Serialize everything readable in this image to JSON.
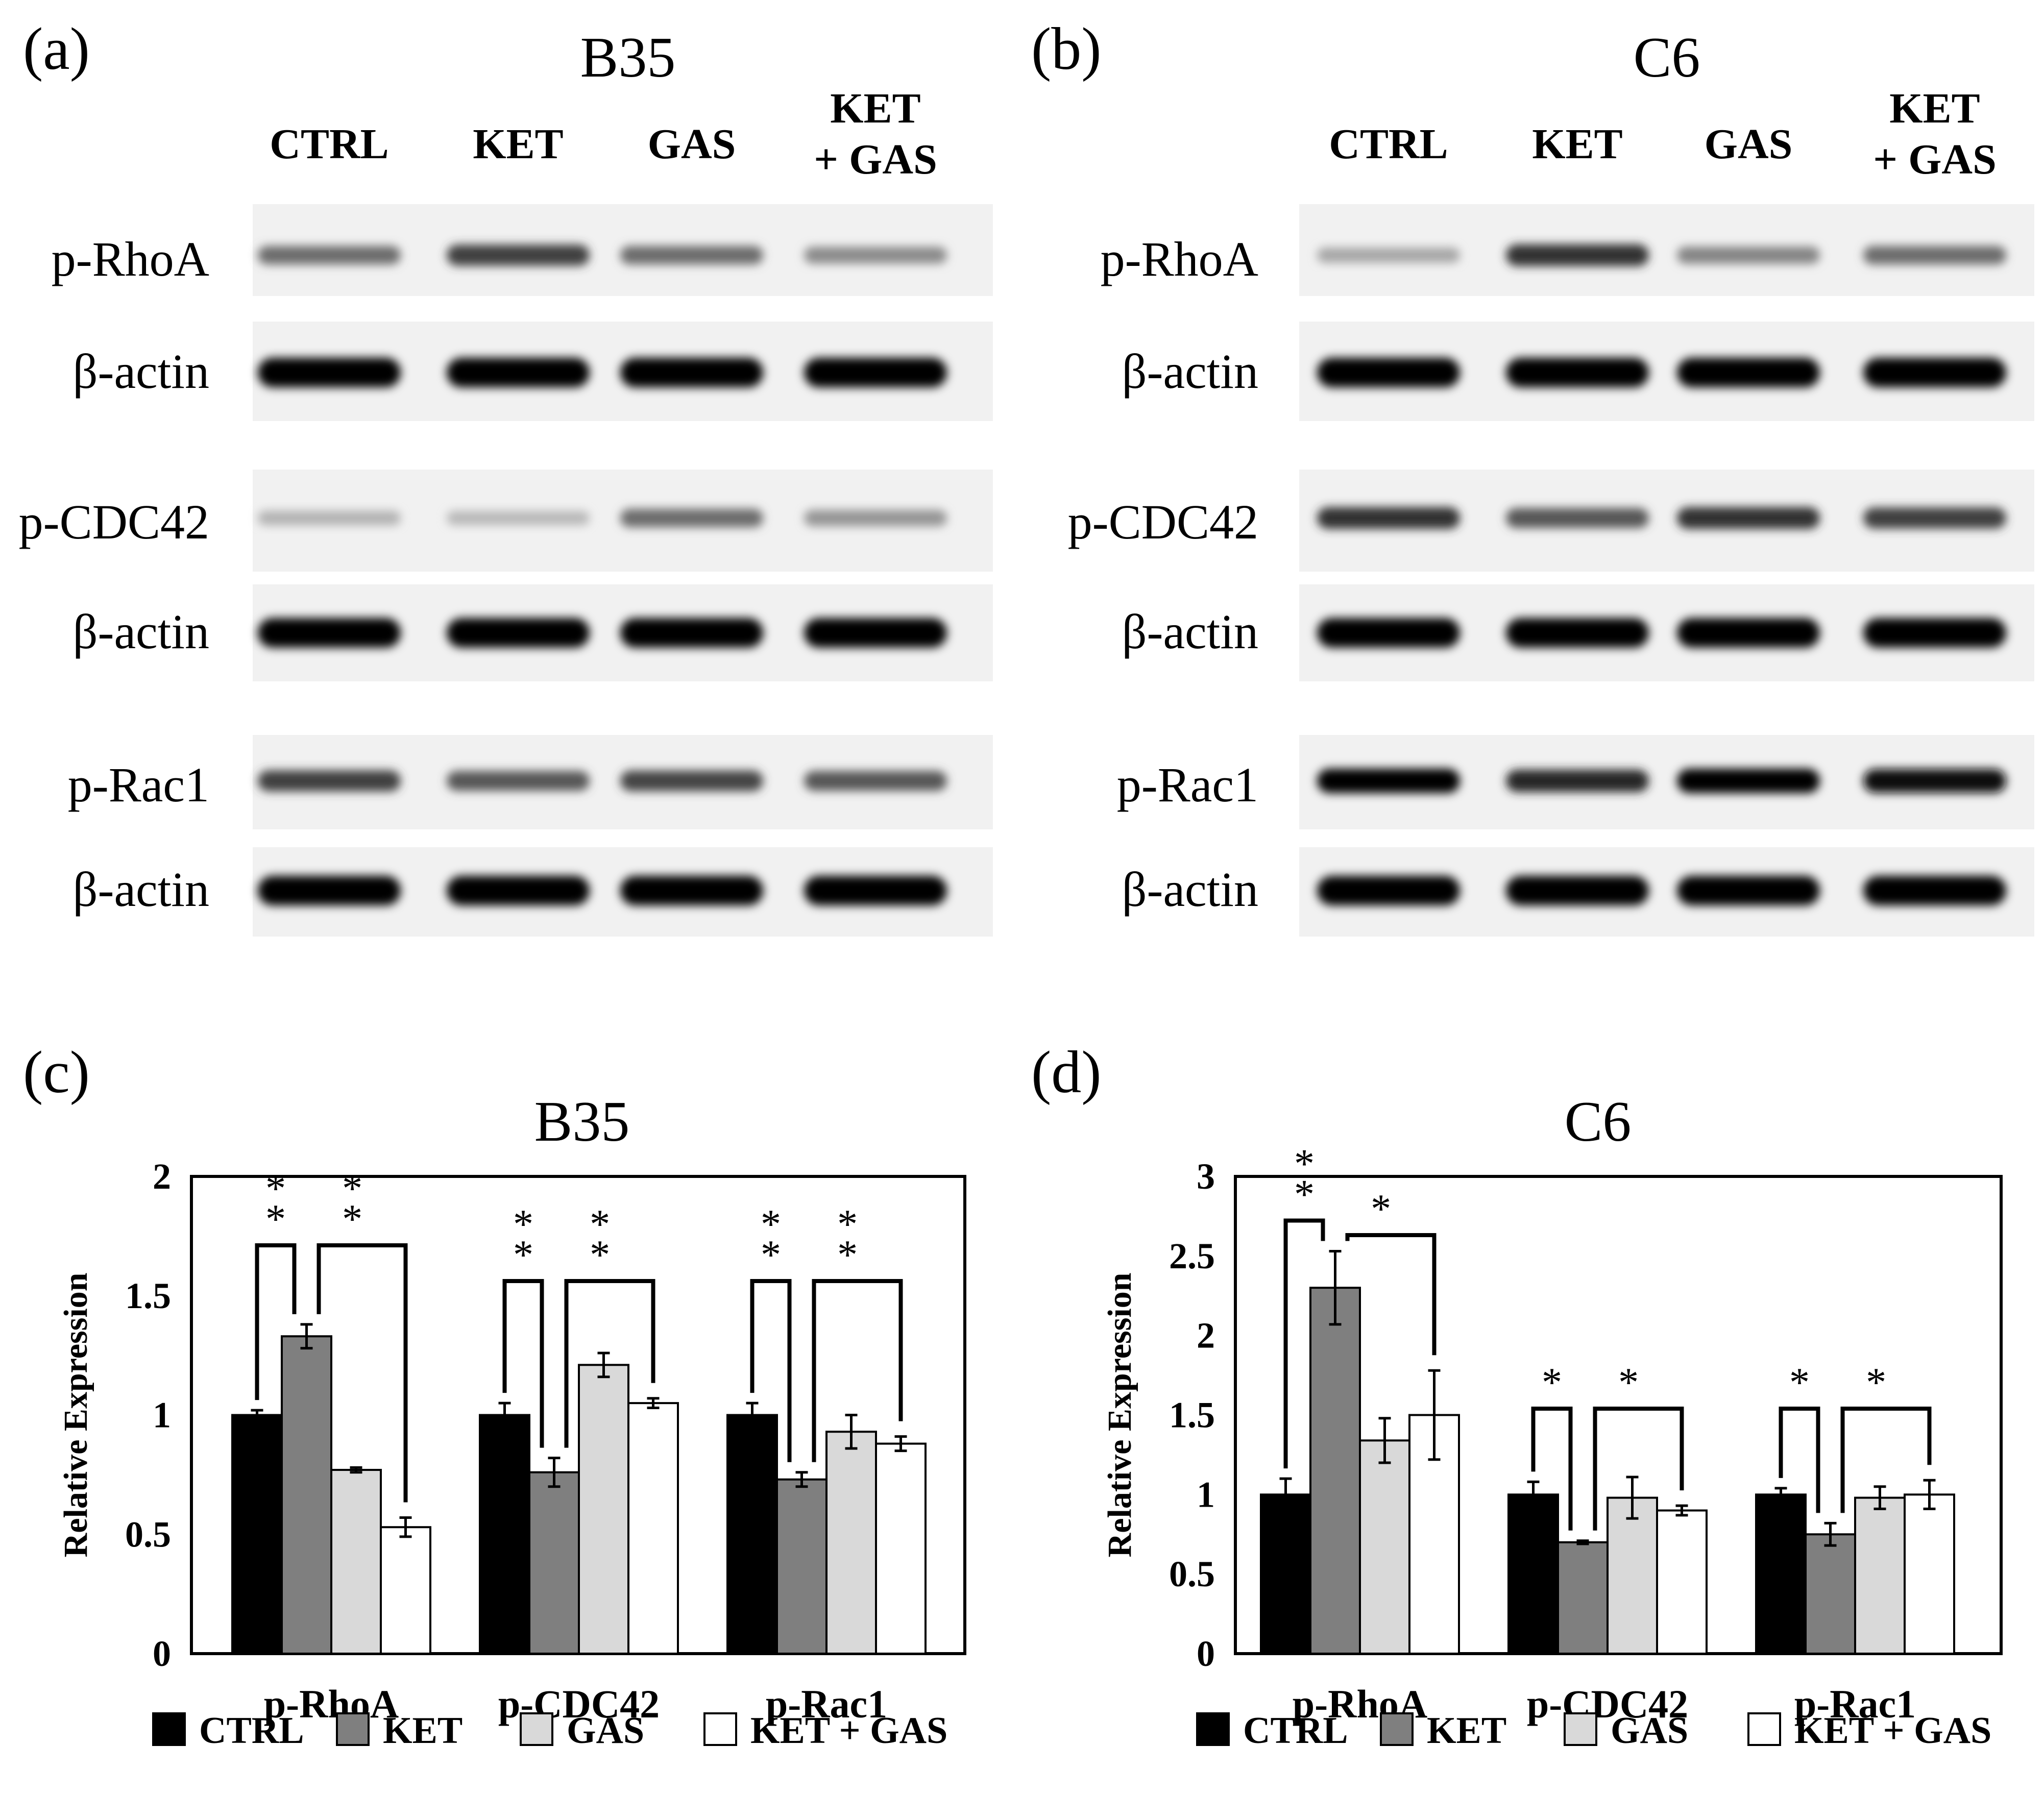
{
  "panels": {
    "a": {
      "label": "(a)",
      "title": "B35"
    },
    "b": {
      "label": "(b)",
      "title": "C6"
    },
    "c": {
      "label": "(c)",
      "title": "B35"
    },
    "d": {
      "label": "(d)",
      "title": "C6"
    }
  },
  "blots": {
    "lanes": [
      "CTRL",
      "KET",
      "GAS"
    ],
    "lane4": [
      "KET",
      "+ GAS"
    ],
    "rows": [
      "p-RhoA",
      "β-actin",
      "p-CDC42",
      "β-actin",
      "p-Rac1",
      "β-actin"
    ],
    "b35_intensity": [
      [
        0.55,
        0.75,
        0.55,
        0.42
      ],
      [
        1.0,
        1.0,
        1.0,
        1.0
      ],
      [
        0.25,
        0.22,
        0.55,
        0.38
      ],
      [
        1.0,
        1.0,
        1.0,
        1.0
      ],
      [
        0.75,
        0.65,
        0.72,
        0.65
      ],
      [
        1.0,
        1.0,
        1.0,
        1.0
      ]
    ],
    "c6_intensity": [
      [
        0.3,
        0.8,
        0.45,
        0.55
      ],
      [
        1.0,
        1.0,
        1.0,
        1.0
      ],
      [
        0.8,
        0.65,
        0.8,
        0.75
      ],
      [
        1.0,
        1.0,
        1.0,
        1.0
      ],
      [
        1.0,
        0.85,
        1.0,
        0.95
      ],
      [
        1.0,
        1.0,
        1.0,
        1.0
      ]
    ]
  },
  "legend": [
    "CTRL",
    "KET",
    "GAS",
    "KET + GAS"
  ],
  "colors": {
    "CTRL": "#000000",
    "KET": "#7f7f7f",
    "GAS": "#d9d9d9",
    "KET + GAS": "#ffffff"
  },
  "chart_data": [
    {
      "type": "bar",
      "title": "B35",
      "ylabel": "Relative Expression",
      "ylim": [
        0,
        2
      ],
      "yticks": [
        "0",
        "0.5",
        "1",
        "1.5",
        "2"
      ],
      "categories": [
        "p-RhoA",
        "p-CDC42",
        "p-Rac1"
      ],
      "series": [
        {
          "name": "CTRL",
          "values": [
            1.0,
            1.0,
            1.0
          ],
          "errors": [
            0.02,
            0.05,
            0.05
          ]
        },
        {
          "name": "KET",
          "values": [
            1.33,
            0.76,
            0.73
          ],
          "errors": [
            0.05,
            0.06,
            0.03
          ]
        },
        {
          "name": "GAS",
          "values": [
            0.77,
            1.21,
            0.93
          ],
          "errors": [
            0.01,
            0.05,
            0.07
          ]
        },
        {
          "name": "KET + GAS",
          "values": [
            0.53,
            1.05,
            0.88
          ],
          "errors": [
            0.04,
            0.02,
            0.03
          ]
        }
      ],
      "significance": [
        {
          "category": "p-RhoA",
          "marks": [
            "**",
            "**"
          ]
        },
        {
          "category": "p-CDC42",
          "marks": [
            "**",
            "**"
          ]
        },
        {
          "category": "p-Rac1",
          "marks": [
            "**",
            "**"
          ]
        }
      ]
    },
    {
      "type": "bar",
      "title": "C6",
      "ylabel": "Relative Expression",
      "ylim": [
        0,
        3
      ],
      "yticks": [
        "0",
        "0.5",
        "1",
        "1.5",
        "2",
        "2.5",
        "3"
      ],
      "categories": [
        "p-RhoA",
        "p-CDC42",
        "p-Rac1"
      ],
      "series": [
        {
          "name": "CTRL",
          "values": [
            1.0,
            1.0,
            1.0
          ],
          "errors": [
            0.1,
            0.08,
            0.04
          ]
        },
        {
          "name": "KET",
          "values": [
            2.3,
            0.7,
            0.75
          ],
          "errors": [
            0.23,
            0.01,
            0.07
          ]
        },
        {
          "name": "GAS",
          "values": [
            1.34,
            0.98,
            0.98
          ],
          "errors": [
            0.14,
            0.13,
            0.07
          ]
        },
        {
          "name": "KET + GAS",
          "values": [
            1.5,
            0.9,
            1.0
          ],
          "errors": [
            0.28,
            0.03,
            0.09
          ]
        }
      ],
      "significance": [
        {
          "category": "p-RhoA",
          "marks": [
            "**",
            "*"
          ]
        },
        {
          "category": "p-CDC42",
          "marks": [
            "*",
            "*"
          ]
        },
        {
          "category": "p-Rac1",
          "marks": [
            "*",
            "*"
          ]
        }
      ]
    }
  ]
}
